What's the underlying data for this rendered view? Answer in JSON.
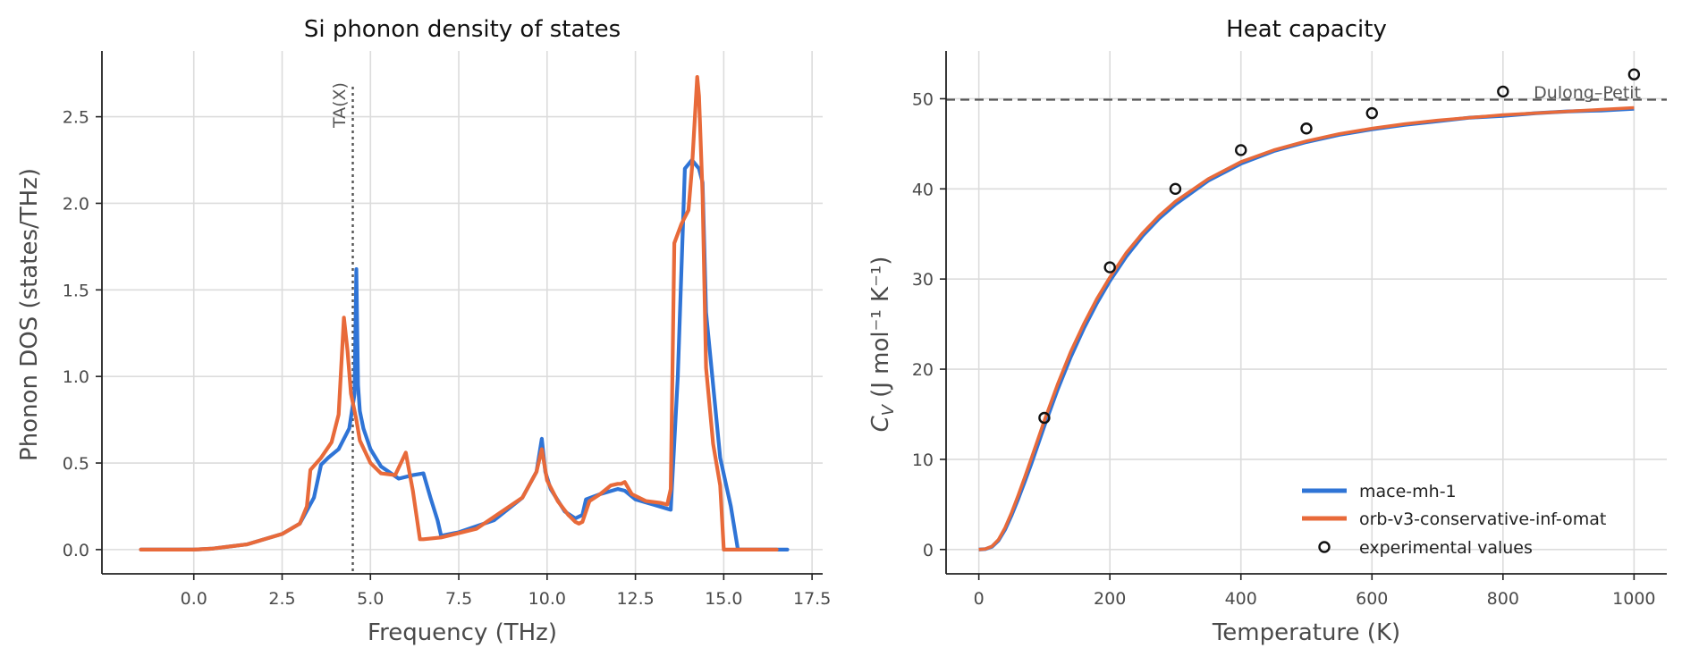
{
  "colors": {
    "mace": "#2f74d6",
    "orb": "#e86a3a",
    "grid": "#dcdcdc",
    "axis": "#222222",
    "marker": "#111111",
    "reference": "#555555"
  },
  "chart_data": [
    {
      "type": "line",
      "title": "Si phonon density of states",
      "xlabel": "Frequency (THz)",
      "ylabel": "Phonon DOS (states/THz)",
      "xlim": [
        -2.6,
        17.8
      ],
      "ylim": [
        -0.14,
        2.88
      ],
      "xticks": [
        0.0,
        2.5,
        5.0,
        7.5,
        10.0,
        12.5,
        15.0,
        17.5
      ],
      "xtick_labels": [
        "0.0",
        "2.5",
        "5.0",
        "7.5",
        "10.0",
        "12.5",
        "15.0",
        "17.5"
      ],
      "yticks": [
        0.0,
        0.5,
        1.0,
        1.5,
        2.0,
        2.5
      ],
      "ytick_labels": [
        "0.0",
        "0.5",
        "1.0",
        "1.5",
        "2.0",
        "2.5"
      ],
      "grid": true,
      "vline": {
        "x": 4.5,
        "label": "TA(X)"
      },
      "series": [
        {
          "name": "mace-mh-1",
          "color": "mace",
          "x": [
            -1.5,
            0,
            0.5,
            1.5,
            2.5,
            3,
            3.4,
            3.6,
            3.8,
            4.1,
            4.4,
            4.55,
            4.6,
            4.65,
            4.7,
            4.8,
            5.0,
            5.3,
            5.8,
            6.2,
            6.5,
            6.7,
            6.9,
            7.0,
            7.5,
            8.5,
            9.3,
            9.7,
            9.85,
            9.95,
            10.1,
            10.5,
            10.8,
            11.0,
            11.1,
            11.5,
            12.0,
            12.2,
            12.5,
            13.0,
            13.5,
            13.7,
            13.9,
            14.1,
            14.3,
            14.4,
            14.5,
            14.9,
            15.2,
            15.4,
            16.5,
            16.8
          ],
          "y": [
            0,
            0,
            0.005,
            0.03,
            0.09,
            0.15,
            0.3,
            0.49,
            0.53,
            0.58,
            0.7,
            0.9,
            1.62,
            0.95,
            0.8,
            0.7,
            0.58,
            0.48,
            0.41,
            0.43,
            0.44,
            0.3,
            0.17,
            0.08,
            0.1,
            0.17,
            0.3,
            0.45,
            0.64,
            0.45,
            0.35,
            0.22,
            0.18,
            0.2,
            0.29,
            0.32,
            0.35,
            0.34,
            0.29,
            0.26,
            0.23,
            1.0,
            2.2,
            2.25,
            2.2,
            2.12,
            1.37,
            0.53,
            0.25,
            0.0,
            0.0,
            0.0
          ]
        },
        {
          "name": "orb-v3-conservative-inf-omat",
          "color": "orb",
          "x": [
            -1.5,
            0,
            0.5,
            1.5,
            2.5,
            3,
            3.2,
            3.3,
            3.6,
            3.9,
            4.1,
            4.25,
            4.35,
            4.45,
            4.6,
            4.7,
            5.0,
            5.3,
            5.7,
            6.0,
            6.2,
            6.4,
            6.5,
            7.0,
            8.0,
            9.3,
            9.7,
            9.85,
            10.0,
            10.3,
            10.6,
            10.8,
            10.9,
            11.0,
            11.2,
            11.5,
            11.8,
            12.0,
            12.1,
            12.2,
            12.4,
            12.8,
            13.2,
            13.4,
            13.5,
            13.6,
            13.8,
            14.0,
            14.1,
            14.25,
            14.3,
            14.4,
            14.5,
            14.7,
            14.9,
            15.0,
            15.5,
            16.5
          ],
          "y": [
            0,
            0,
            0.005,
            0.03,
            0.09,
            0.15,
            0.25,
            0.46,
            0.53,
            0.62,
            0.78,
            1.34,
            1.15,
            0.9,
            0.75,
            0.63,
            0.5,
            0.44,
            0.43,
            0.56,
            0.34,
            0.06,
            0.06,
            0.07,
            0.12,
            0.3,
            0.45,
            0.58,
            0.4,
            0.28,
            0.2,
            0.16,
            0.15,
            0.16,
            0.28,
            0.32,
            0.37,
            0.38,
            0.38,
            0.39,
            0.32,
            0.28,
            0.27,
            0.26,
            0.35,
            1.77,
            1.88,
            1.96,
            2.2,
            2.73,
            2.62,
            2.05,
            1.05,
            0.61,
            0.37,
            0.0,
            0.0,
            0.0
          ]
        }
      ]
    },
    {
      "type": "line",
      "title": "Heat capacity",
      "xlabel": "Temperature (K)",
      "ylabel": "C_V (J mol⁻¹ K⁻¹)",
      "ylabel_parts": {
        "symbol": "C",
        "subscript": "V",
        "rest": "(J mol⁻¹ K⁻¹)"
      },
      "xlim": [
        -50,
        1050
      ],
      "ylim": [
        -2.7,
        55.3
      ],
      "xticks": [
        0,
        200,
        400,
        600,
        800,
        1000
      ],
      "xtick_labels": [
        "0",
        "200",
        "400",
        "600",
        "800",
        "1000"
      ],
      "yticks": [
        0,
        10,
        20,
        30,
        40,
        50
      ],
      "ytick_labels": [
        "0",
        "10",
        "20",
        "30",
        "40",
        "50"
      ],
      "grid": true,
      "hline": {
        "y": 49.9,
        "label": "Dulong–Petit"
      },
      "legend_position": "lower-right",
      "series": [
        {
          "name": "mace-mh-1",
          "color": "mace",
          "x": [
            0,
            10,
            20,
            30,
            40,
            50,
            60,
            70,
            80,
            90,
            100,
            120,
            140,
            160,
            180,
            200,
            225,
            250,
            275,
            300,
            350,
            400,
            450,
            500,
            550,
            600,
            650,
            700,
            750,
            800,
            850,
            900,
            950,
            1000
          ],
          "y": [
            0,
            0.05,
            0.3,
            1.0,
            2.2,
            3.8,
            5.6,
            7.5,
            9.5,
            11.6,
            13.7,
            17.7,
            21.3,
            24.5,
            27.3,
            29.8,
            32.5,
            34.8,
            36.7,
            38.3,
            40.9,
            42.8,
            44.2,
            45.2,
            46.0,
            46.6,
            47.1,
            47.5,
            47.9,
            48.1,
            48.4,
            48.6,
            48.7,
            48.9
          ]
        },
        {
          "name": "orb-v3-conservative-inf-omat",
          "color": "orb",
          "x": [
            0,
            10,
            20,
            30,
            40,
            50,
            60,
            70,
            80,
            90,
            100,
            120,
            140,
            160,
            180,
            200,
            225,
            250,
            275,
            300,
            350,
            400,
            450,
            500,
            550,
            600,
            650,
            700,
            750,
            800,
            850,
            900,
            950,
            1000
          ],
          "y": [
            0,
            0.06,
            0.35,
            1.1,
            2.4,
            4.1,
            6.0,
            8.0,
            10.1,
            12.2,
            14.3,
            18.3,
            21.9,
            25.0,
            27.8,
            30.2,
            32.9,
            35.1,
            37.0,
            38.6,
            41.1,
            43.0,
            44.3,
            45.3,
            46.1,
            46.7,
            47.2,
            47.6,
            47.9,
            48.2,
            48.4,
            48.6,
            48.8,
            49.0
          ]
        },
        {
          "name": "experimental values",
          "marker": "open-circle",
          "x": [
            100,
            200,
            300,
            400,
            500,
            600,
            800,
            1000
          ],
          "y": [
            14.6,
            31.3,
            40.0,
            44.3,
            46.7,
            48.4,
            50.8,
            52.7
          ]
        }
      ]
    }
  ]
}
